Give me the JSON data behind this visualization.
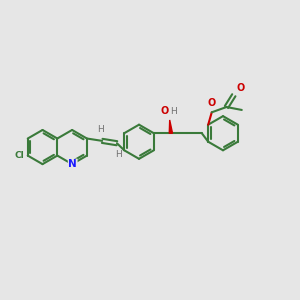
{
  "background_color": "#e6e6e6",
  "bond_color": "#3a7a3a",
  "n_color": "#1a1aff",
  "o_color": "#cc0000",
  "h_color": "#707070",
  "figsize": [
    3.0,
    3.0
  ],
  "dpi": 100,
  "xlim": [
    0,
    10
  ],
  "ylim": [
    0,
    10
  ]
}
